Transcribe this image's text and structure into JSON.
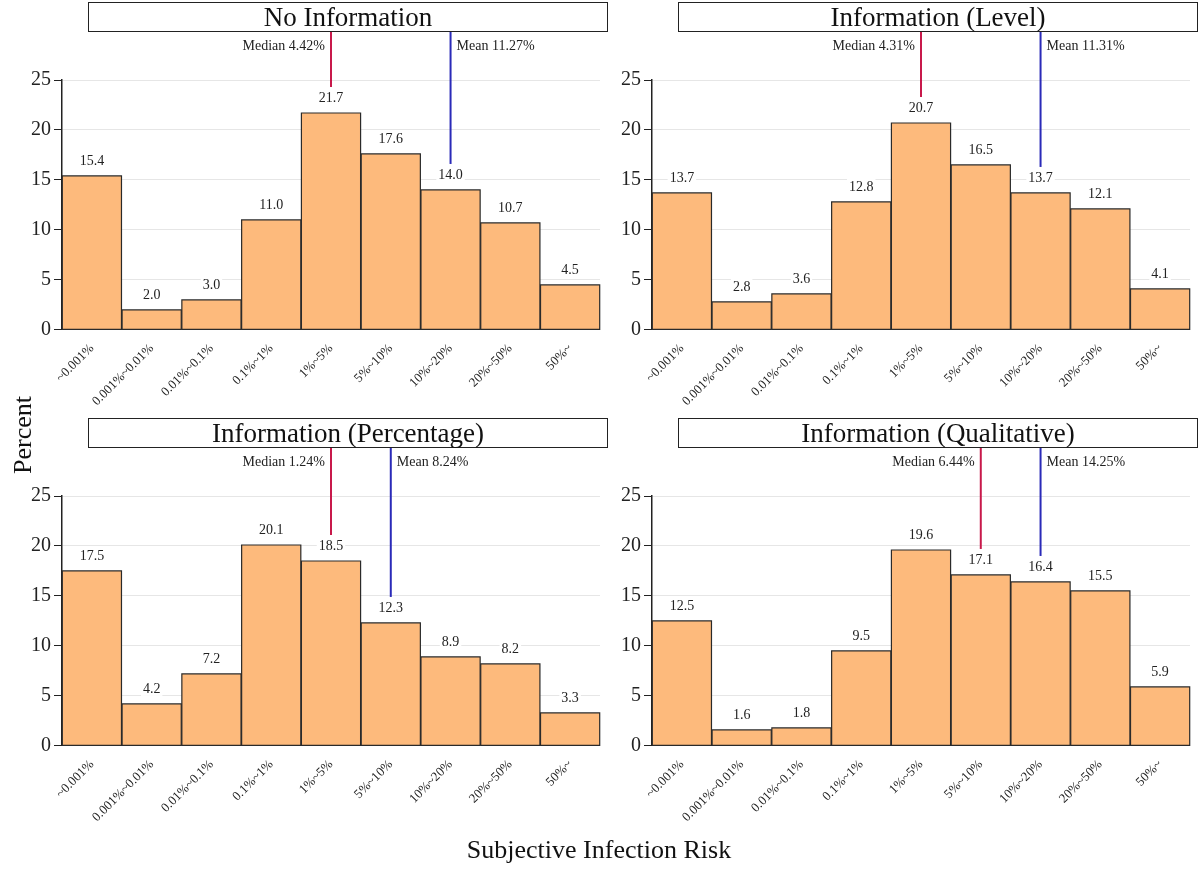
{
  "chart_data": [
    {
      "type": "bar",
      "title": "No Information",
      "ylabel": "Percent",
      "xlabel": "Subjective Infection Risk",
      "categories": [
        "~0.001%",
        "0.001%~0.01%",
        "0.01%~0.1%",
        "0.1%~1%",
        "1%~5%",
        "5%~10%",
        "10%~20%",
        "20%~50%",
        "50%~"
      ],
      "values": [
        15.4,
        2.0,
        3.0,
        11.0,
        21.7,
        17.6,
        14.0,
        10.7,
        4.5
      ],
      "value_labels": [
        "15.4",
        "2.0",
        "3.0",
        "11.0",
        "21.7",
        "17.6",
        "14.0",
        "10.7",
        "4.5"
      ],
      "color": "#fdba7c",
      "ylim": [
        0,
        25
      ],
      "yticks": [
        0,
        5,
        10,
        15,
        20,
        25
      ],
      "grid": "y",
      "ref_lines": [
        {
          "axis": "x",
          "value": "1%~5%",
          "label": "Median 4.42%",
          "color": "#c8194b"
        },
        {
          "axis": "x",
          "value": "10%~20%",
          "label": "Mean 11.27%",
          "color": "#2a2ab8"
        }
      ]
    },
    {
      "type": "bar",
      "title": "Information (Level)",
      "categories": [
        "~0.001%",
        "0.001%~0.01%",
        "0.01%~0.1%",
        "0.1%~1%",
        "1%~5%",
        "5%~10%",
        "10%~20%",
        "20%~50%",
        "50%~"
      ],
      "values": [
        13.7,
        2.8,
        3.6,
        12.8,
        20.7,
        16.5,
        13.7,
        12.1,
        4.1
      ],
      "value_labels": [
        "13.7",
        "2.8",
        "3.6",
        "12.8",
        "20.7",
        "16.5",
        "13.7",
        "12.1",
        "4.1"
      ],
      "color": "#fdba7c",
      "ylim": [
        0,
        25
      ],
      "yticks": [
        0,
        5,
        10,
        15,
        20,
        25
      ],
      "grid": "y",
      "ref_lines": [
        {
          "axis": "x",
          "value": "1%~5%",
          "label": "Median 4.31%",
          "color": "#c8194b"
        },
        {
          "axis": "x",
          "value": "10%~20%",
          "label": "Mean 11.31%",
          "color": "#2a2ab8"
        }
      ]
    },
    {
      "type": "bar",
      "title": "Information (Percentage)",
      "categories": [
        "~0.001%",
        "0.001%~0.01%",
        "0.01%~0.1%",
        "0.1%~1%",
        "1%~5%",
        "5%~10%",
        "10%~20%",
        "20%~50%",
        "50%~"
      ],
      "values": [
        17.5,
        4.2,
        7.2,
        20.1,
        18.5,
        12.3,
        8.9,
        8.2,
        3.3
      ],
      "value_labels": [
        "17.5",
        "4.2",
        "7.2",
        "20.1",
        "18.5",
        "12.3",
        "8.9",
        "8.2",
        "3.3"
      ],
      "color": "#fdba7c",
      "ylim": [
        0,
        25
      ],
      "yticks": [
        0,
        5,
        10,
        15,
        20,
        25
      ],
      "grid": "y",
      "ref_lines": [
        {
          "axis": "x",
          "value": "1%~5%",
          "label": "Median 1.24%",
          "color": "#c8194b"
        },
        {
          "axis": "x",
          "value": "5%~10%",
          "label": "Mean 8.24%",
          "color": "#2a2ab8"
        }
      ]
    },
    {
      "type": "bar",
      "title": "Information (Qualitative)",
      "categories": [
        "~0.001%",
        "0.001%~0.01%",
        "0.01%~0.1%",
        "0.1%~1%",
        "1%~5%",
        "5%~10%",
        "10%~20%",
        "20%~50%",
        "50%~"
      ],
      "values": [
        12.5,
        1.6,
        1.8,
        9.5,
        19.6,
        17.1,
        16.4,
        15.5,
        5.9
      ],
      "value_labels": [
        "12.5",
        "1.6",
        "1.8",
        "9.5",
        "19.6",
        "17.1",
        "16.4",
        "15.5",
        "5.9"
      ],
      "color": "#fdba7c",
      "ylim": [
        0,
        25
      ],
      "yticks": [
        0,
        5,
        10,
        15,
        20,
        25
      ],
      "grid": "y",
      "ref_lines": [
        {
          "axis": "x",
          "value": "5%~10%",
          "label": "Median 6.44%",
          "color": "#c8194b"
        },
        {
          "axis": "x",
          "value": "10%~20%",
          "label": "Mean 14.25%",
          "color": "#2a2ab8"
        }
      ]
    }
  ]
}
